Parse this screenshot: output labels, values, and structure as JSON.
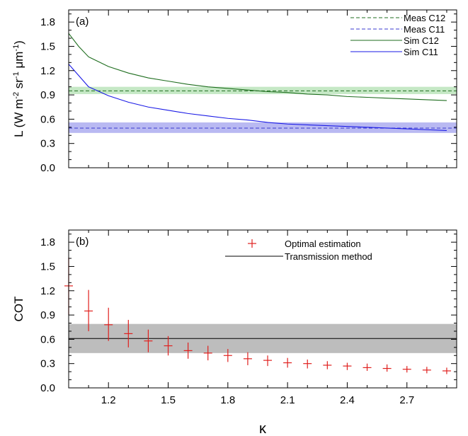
{
  "chart_data": [
    {
      "type": "line",
      "panel_label": "(a)",
      "ylabel": {
        "base": "L (W m",
        "exp1": "-2",
        "mid1": " sr",
        "exp2": "-1",
        "mid2": " μm",
        "exp3": "-1",
        "end": ")"
      },
      "xlabel": "",
      "xlim": [
        1.0,
        2.95
      ],
      "ylim": [
        0.0,
        1.95
      ],
      "yticks": [
        "0.0",
        "0.3",
        "0.6",
        "0.9",
        "1.2",
        "1.5",
        "1.8"
      ],
      "ytick_values": [
        0.0,
        0.3,
        0.6,
        0.9,
        1.2,
        1.5,
        1.8
      ],
      "legend_position": "top-right",
      "x": [
        1.0,
        1.05,
        1.1,
        1.2,
        1.3,
        1.4,
        1.5,
        1.6,
        1.7,
        1.8,
        1.9,
        2.0,
        2.1,
        2.2,
        2.3,
        2.4,
        2.5,
        2.6,
        2.7,
        2.8,
        2.9
      ],
      "series": [
        {
          "name": "Meas C12",
          "style": "dashed",
          "color": "#1f6e1f",
          "constant": 0.95,
          "band": [
            0.91,
            1.0
          ],
          "band_color": "#c5e8c5"
        },
        {
          "name": "Meas C11",
          "style": "dashed",
          "color": "#3a3ad0",
          "constant": 0.49,
          "band": [
            0.43,
            0.56
          ],
          "band_color": "#b9b9f2"
        },
        {
          "name": "Sim C12",
          "style": "solid",
          "color": "#1f6e1f",
          "values": [
            1.66,
            1.5,
            1.37,
            1.25,
            1.17,
            1.11,
            1.07,
            1.03,
            1.0,
            0.98,
            0.96,
            0.94,
            0.93,
            0.91,
            0.9,
            0.88,
            0.87,
            0.86,
            0.85,
            0.84,
            0.83
          ]
        },
        {
          "name": "Sim C11",
          "style": "solid",
          "color": "#1a1ae6",
          "values": [
            1.28,
            1.14,
            1.0,
            0.89,
            0.81,
            0.75,
            0.71,
            0.67,
            0.64,
            0.61,
            0.59,
            0.56,
            0.54,
            0.53,
            0.52,
            0.51,
            0.5,
            0.49,
            0.48,
            0.47,
            0.46
          ]
        }
      ]
    },
    {
      "type": "scatter",
      "panel_label": "(b)",
      "ylabel": "COT",
      "xlabel": "κ",
      "xlim": [
        1.0,
        2.95
      ],
      "ylim": [
        0.0,
        1.95
      ],
      "xticks": [
        "1.2",
        "1.5",
        "1.8",
        "2.1",
        "2.4",
        "2.7"
      ],
      "xtick_values": [
        1.2,
        1.5,
        1.8,
        2.1,
        2.4,
        2.7
      ],
      "yticks": [
        "0.0",
        "0.3",
        "0.6",
        "0.9",
        "1.2",
        "1.5",
        "1.8"
      ],
      "ytick_values": [
        0.0,
        0.3,
        0.6,
        0.9,
        1.2,
        1.5,
        1.8
      ],
      "legend_position": "top-center",
      "series": [
        {
          "name": "Optimal estimation",
          "color": "#e0201e",
          "points": [
            {
              "x": 1.0,
              "y": 1.26,
              "err_low": 0.9,
              "err_high": 1.61
            },
            {
              "x": 1.1,
              "y": 0.95,
              "err_low": 0.7,
              "err_high": 1.21
            },
            {
              "x": 1.2,
              "y": 0.78,
              "err_low": 0.58,
              "err_high": 0.99
            },
            {
              "x": 1.3,
              "y": 0.67,
              "err_low": 0.5,
              "err_high": 0.84
            },
            {
              "x": 1.4,
              "y": 0.58,
              "err_low": 0.44,
              "err_high": 0.72
            },
            {
              "x": 1.5,
              "y": 0.52,
              "err_low": 0.4,
              "err_high": 0.64
            },
            {
              "x": 1.6,
              "y": 0.46,
              "err_low": 0.36,
              "err_high": 0.56
            },
            {
              "x": 1.7,
              "y": 0.43,
              "err_low": 0.34,
              "err_high": 0.52
            },
            {
              "x": 1.8,
              "y": 0.4,
              "err_low": 0.32,
              "err_high": 0.48
            },
            {
              "x": 1.9,
              "y": 0.36,
              "err_low": 0.28,
              "err_high": 0.44
            },
            {
              "x": 2.0,
              "y": 0.34,
              "err_low": 0.27,
              "err_high": 0.4
            },
            {
              "x": 2.1,
              "y": 0.31,
              "err_low": 0.25,
              "err_high": 0.37
            },
            {
              "x": 2.2,
              "y": 0.3,
              "err_low": 0.24,
              "err_high": 0.35
            },
            {
              "x": 2.3,
              "y": 0.28,
              "err_low": 0.23,
              "err_high": 0.33
            },
            {
              "x": 2.4,
              "y": 0.27,
              "err_low": 0.22,
              "err_high": 0.31
            },
            {
              "x": 2.5,
              "y": 0.25,
              "err_low": 0.21,
              "err_high": 0.3
            },
            {
              "x": 2.6,
              "y": 0.24,
              "err_low": 0.2,
              "err_high": 0.29
            },
            {
              "x": 2.7,
              "y": 0.23,
              "err_low": 0.19,
              "err_high": 0.27
            },
            {
              "x": 2.8,
              "y": 0.22,
              "err_low": 0.18,
              "err_high": 0.26
            },
            {
              "x": 2.9,
              "y": 0.21,
              "err_low": 0.17,
              "err_high": 0.25
            }
          ]
        },
        {
          "name": "Transmission method",
          "style": "solid",
          "color": "#000000",
          "constant": 0.61,
          "band": [
            0.43,
            0.79
          ],
          "band_color": "#bdbdbd"
        }
      ]
    }
  ]
}
